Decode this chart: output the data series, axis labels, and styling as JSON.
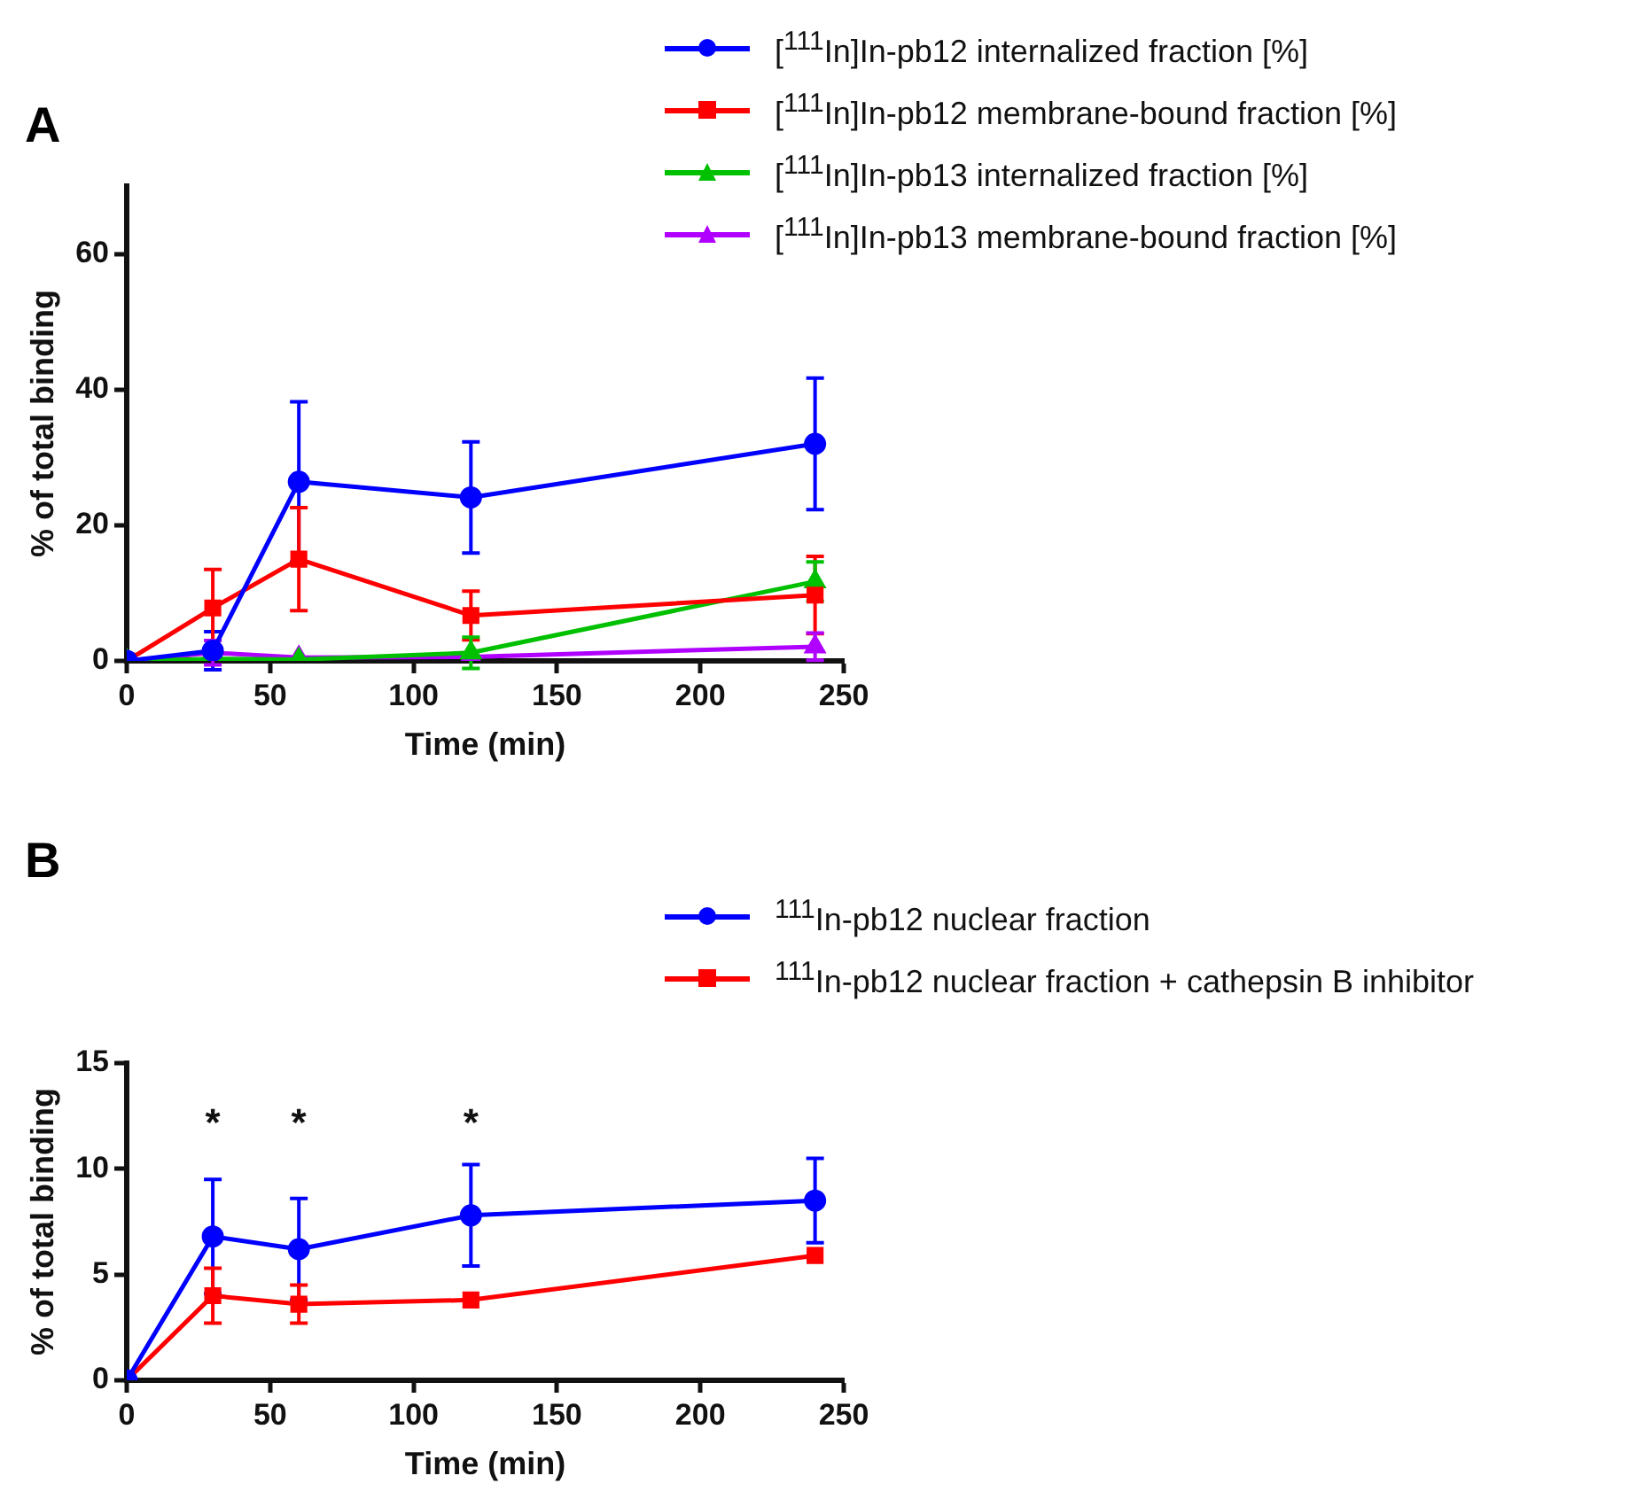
{
  "chart_data": [
    {
      "type": "line",
      "title": "A",
      "xlabel": "Time (min)",
      "ylabel": "% of total binding",
      "x": [
        0,
        30,
        60,
        120,
        240
      ],
      "xlim": [
        0,
        250
      ],
      "xticks": [
        0,
        50,
        100,
        150,
        200,
        250
      ],
      "ylim": [
        0,
        70
      ],
      "yticks": [
        0,
        20,
        40,
        60
      ],
      "grid": false,
      "legend": "top right",
      "line_style": "solid",
      "series": [
        {
          "name": "[$^{111}$In]In-pb12 internalized fraction [%]",
          "color": "#0000ff",
          "marker": "circle",
          "values": [
            0,
            1.5,
            26.4,
            24.1,
            32.0
          ],
          "errors": [
            null,
            2.8,
            11.8,
            8.2,
            9.7
          ]
        },
        {
          "name": "[$^{111}$In]In-pb12 membrane-bound fraction [%]",
          "color": "#ff0000",
          "marker": "square",
          "values": [
            0,
            7.8,
            15.0,
            6.7,
            9.7
          ],
          "errors": [
            null,
            5.7,
            7.6,
            3.6,
            5.7
          ]
        },
        {
          "name": "[$^{111}$In]In-pb13 internalized fraction [%]",
          "color": "#00c000",
          "marker": "triangle",
          "values": [
            0,
            0.3,
            0.2,
            1.2,
            11.7
          ],
          "errors": [
            null,
            null,
            null,
            2.3,
            2.9
          ]
        },
        {
          "name": "[$^{111}$In]In-pb13 membrane-bound fraction [%]",
          "color": "#b000ff",
          "marker": "triangle",
          "values": [
            0,
            1.2,
            0.5,
            0.6,
            2.1
          ],
          "errors": [
            null,
            1.8,
            null,
            null,
            2.0
          ]
        }
      ]
    },
    {
      "type": "line",
      "title": "B",
      "xlabel": "Time (min)",
      "ylabel": "% of total binding",
      "x": [
        0,
        30,
        60,
        120,
        240
      ],
      "xlim": [
        0,
        250
      ],
      "xticks": [
        0,
        50,
        100,
        150,
        200,
        250
      ],
      "ylim": [
        0,
        15
      ],
      "yticks": [
        0,
        5,
        10,
        15
      ],
      "grid": false,
      "legend": "top right",
      "line_style": "solid",
      "annotations": [
        "*",
        "*",
        "*"
      ],
      "series": [
        {
          "name": "$^{111}$In-pb12 nuclear fraction",
          "color": "#0000ff",
          "marker": "circle",
          "values": [
            0,
            6.8,
            6.2,
            7.8,
            8.5
          ],
          "errors": [
            null,
            2.7,
            2.4,
            2.4,
            2.0
          ]
        },
        {
          "name": "$^{111}$In-pb12 nuclear fraction + cathepsin B inhibitor",
          "color": "#ff0000",
          "marker": "square",
          "values": [
            0,
            4.0,
            3.6,
            3.8,
            5.9
          ],
          "errors": [
            null,
            1.3,
            0.9,
            null,
            null
          ]
        }
      ]
    }
  ]
}
